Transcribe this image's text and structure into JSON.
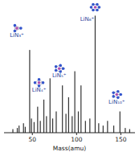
{
  "chart_data": {
    "type": "bar",
    "x_label": "Mass(amu)",
    "x": [
      28,
      33,
      35,
      40,
      42,
      47,
      49,
      52,
      56,
      59,
      63,
      66,
      70,
      73,
      77,
      84,
      88,
      91,
      95,
      98,
      102,
      105,
      110,
      115,
      121,
      125,
      130,
      135,
      142,
      149,
      155,
      160
    ],
    "values": [
      3,
      4,
      6,
      8,
      5,
      70,
      12,
      9,
      22,
      10,
      28,
      14,
      46,
      12,
      18,
      40,
      16,
      30,
      14,
      52,
      18,
      40,
      10,
      12,
      99,
      8,
      6,
      10,
      6,
      18,
      4,
      3
    ],
    "color": "#333333",
    "xlim": [
      18,
      166
    ],
    "xticks": [
      50,
      100,
      150
    ],
    "ylim": [
      0,
      100
    ],
    "tick_labels": "x",
    "grid": false,
    "annotations": [
      {
        "text": "LiN₃⁺",
        "x": 47
      },
      {
        "text": "LiN₄⁺",
        "x": 63
      },
      {
        "text": "LiN₅⁺",
        "x": 84
      },
      {
        "text": "LiN₆⁺",
        "x": 121
      },
      {
        "text": "LiN₁₀⁺",
        "x": 149
      }
    ]
  }
}
